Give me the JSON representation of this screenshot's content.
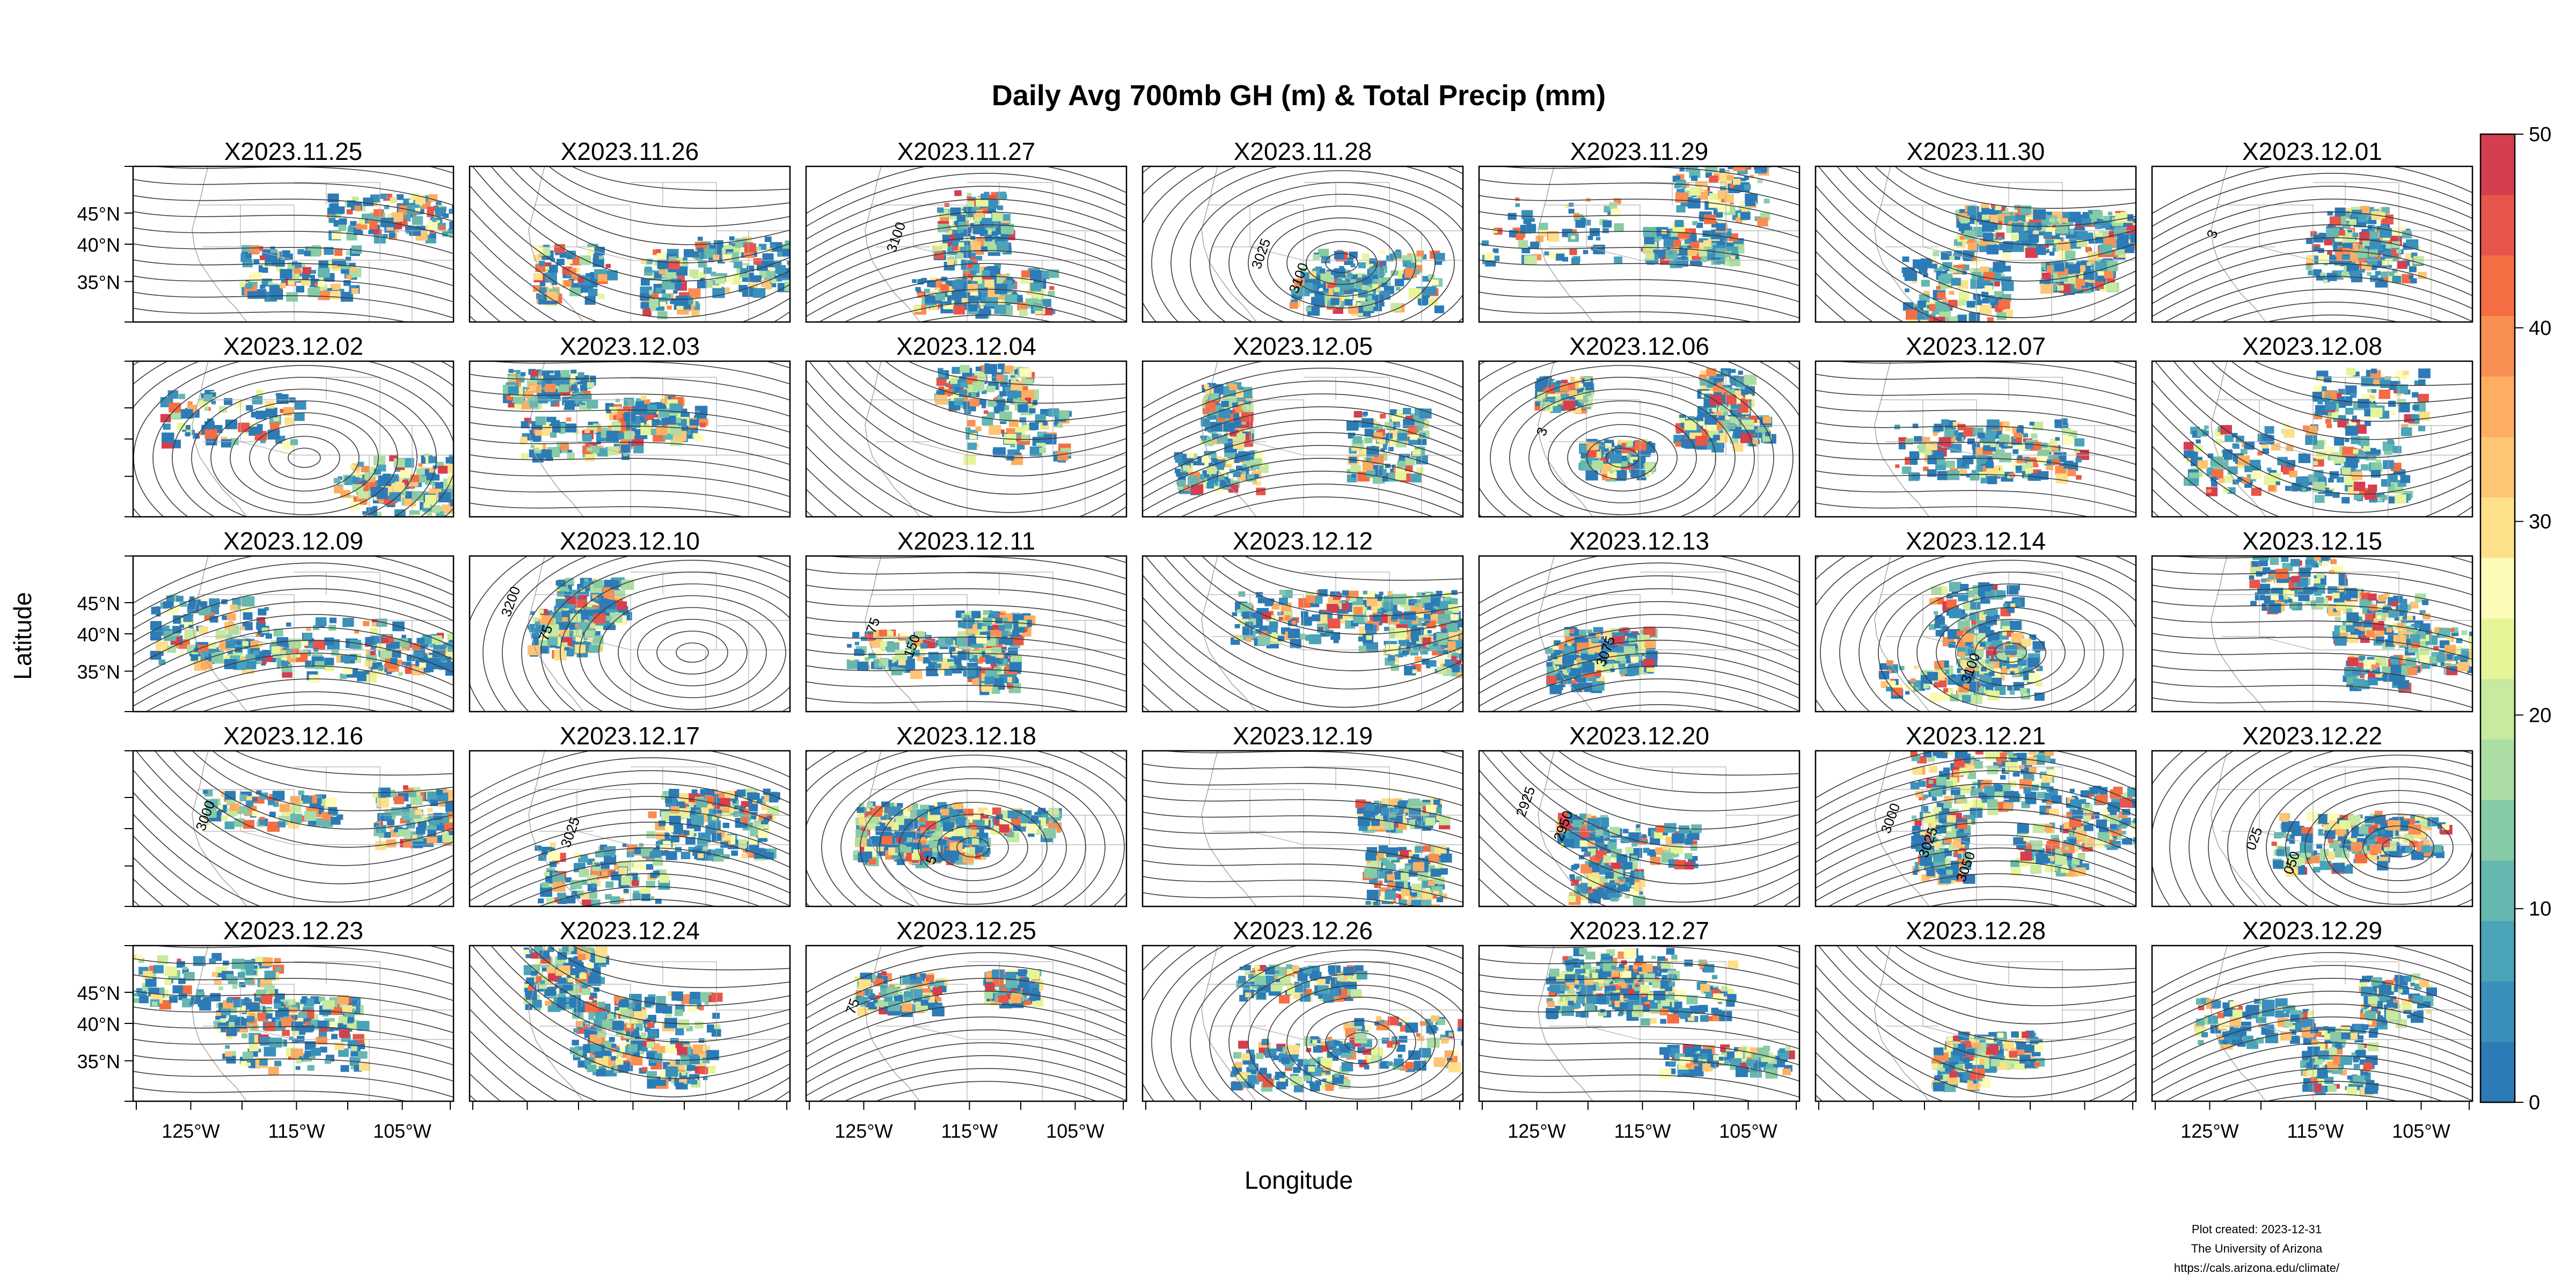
{
  "title": "Daily Avg 700mb GH (m) & Total Precip (mm)",
  "xlabel": "Longitude",
  "ylabel": "Latitude",
  "lon_ticks": [
    "125°W",
    "115°W",
    "105°W"
  ],
  "lat_ticks": [
    "45°N",
    "40°N",
    "35°N"
  ],
  "colorbar": {
    "ticks": [
      "0",
      "10",
      "20",
      "30",
      "40",
      "50"
    ],
    "range": [
      0,
      50
    ],
    "colors": [
      "#2c7bb6",
      "#3a8fbb",
      "#4aa3b8",
      "#66b7b0",
      "#86cba6",
      "#abdda4",
      "#c7e9a0",
      "#e6f598",
      "#fdfbb8",
      "#fee08b",
      "#fdc574",
      "#fdae61",
      "#f98e52",
      "#f46d43",
      "#e8554a",
      "#d53e4f"
    ]
  },
  "footer": {
    "line1": "Plot created: 2023-12-31",
    "line2": "The University of Arizona",
    "line3": "https://cals.arizona.edu/climate/"
  },
  "panels": [
    {
      "date": "X2023.11.25",
      "labels": []
    },
    {
      "date": "X2023.11.26",
      "labels": []
    },
    {
      "date": "X2023.11.27",
      "labels": [
        "3100"
      ]
    },
    {
      "date": "X2023.11.28",
      "labels": [
        "3025",
        "3100"
      ]
    },
    {
      "date": "X2023.11.29",
      "labels": []
    },
    {
      "date": "X2023.11.30",
      "labels": []
    },
    {
      "date": "X2023.12.01",
      "labels": [
        "3"
      ]
    },
    {
      "date": "X2023.12.02",
      "labels": []
    },
    {
      "date": "X2023.12.03",
      "labels": []
    },
    {
      "date": "X2023.12.04",
      "labels": []
    },
    {
      "date": "X2023.12.05",
      "labels": []
    },
    {
      "date": "X2023.12.06",
      "labels": [
        "3"
      ]
    },
    {
      "date": "X2023.12.07",
      "labels": []
    },
    {
      "date": "X2023.12.08",
      "labels": []
    },
    {
      "date": "X2023.12.09",
      "labels": []
    },
    {
      "date": "X2023.12.10",
      "labels": [
        "3200",
        "75"
      ]
    },
    {
      "date": "X2023.12.11",
      "labels": [
        "75",
        "150"
      ]
    },
    {
      "date": "X2023.12.12",
      "labels": []
    },
    {
      "date": "X2023.12.13",
      "labels": [
        "3075"
      ]
    },
    {
      "date": "X2023.12.14",
      "labels": [
        "3100"
      ]
    },
    {
      "date": "X2023.12.15",
      "labels": []
    },
    {
      "date": "X2023.12.16",
      "labels": [
        "3000"
      ]
    },
    {
      "date": "X2023.12.17",
      "labels": [
        "3025"
      ]
    },
    {
      "date": "X2023.12.18",
      "labels": [
        "5"
      ]
    },
    {
      "date": "X2023.12.19",
      "labels": []
    },
    {
      "date": "X2023.12.20",
      "labels": [
        "2925",
        "2950"
      ]
    },
    {
      "date": "X2023.12.21",
      "labels": [
        "3000",
        "3025",
        "3050"
      ]
    },
    {
      "date": "X2023.12.22",
      "labels": [
        "025",
        "050"
      ]
    },
    {
      "date": "X2023.12.23",
      "labels": []
    },
    {
      "date": "X2023.12.24",
      "labels": []
    },
    {
      "date": "X2023.12.25",
      "labels": [
        "75"
      ]
    },
    {
      "date": "X2023.12.26",
      "labels": []
    },
    {
      "date": "X2023.12.27",
      "labels": []
    },
    {
      "date": "X2023.12.28",
      "labels": []
    },
    {
      "date": "X2023.12.29",
      "labels": []
    }
  ]
}
